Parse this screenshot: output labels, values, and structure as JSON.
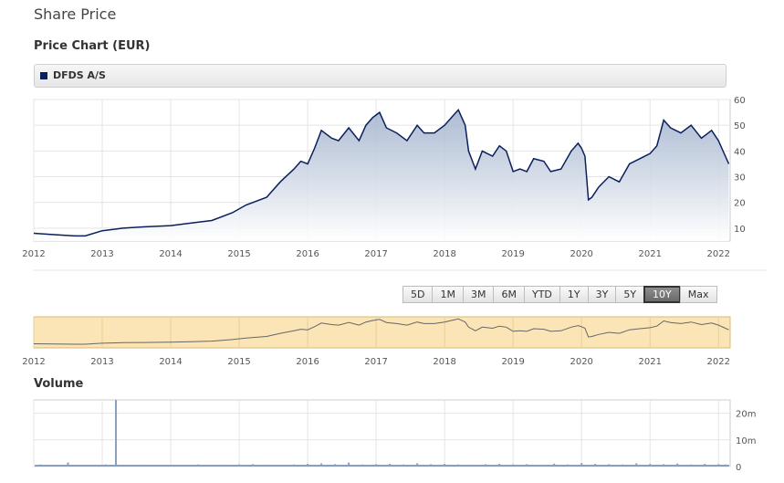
{
  "page": {
    "title": "Share Price"
  },
  "chart": {
    "title": "Price Chart (EUR)"
  },
  "legend": {
    "swatch_color": "#0a1f5c",
    "label": "DFDS A/S"
  },
  "range_buttons": [
    {
      "label": "5D",
      "active": false
    },
    {
      "label": "1M",
      "active": false
    },
    {
      "label": "3M",
      "active": false
    },
    {
      "label": "6M",
      "active": false
    },
    {
      "label": "YTD",
      "active": false
    },
    {
      "label": "1Y",
      "active": false
    },
    {
      "label": "3Y",
      "active": false
    },
    {
      "label": "5Y",
      "active": false
    },
    {
      "label": "10Y",
      "active": true
    },
    {
      "label": "Max",
      "active": false
    }
  ],
  "volume": {
    "title": "Volume"
  },
  "chart_data": [
    {
      "type": "area",
      "series": [
        {
          "name": "DFDS A/S",
          "color": "#0a1f5c",
          "x": [
            2012.0,
            2012.3,
            2012.6,
            2012.75,
            2013.0,
            2013.3,
            2013.6,
            2014.0,
            2014.3,
            2014.6,
            2014.9,
            2015.1,
            2015.4,
            2015.6,
            2015.8,
            2015.9,
            2016.0,
            2016.1,
            2016.2,
            2016.35,
            2016.45,
            2016.6,
            2016.75,
            2016.85,
            2016.95,
            2017.05,
            2017.15,
            2017.3,
            2017.45,
            2017.6,
            2017.7,
            2017.85,
            2018.0,
            2018.1,
            2018.2,
            2018.3,
            2018.35,
            2018.45,
            2018.55,
            2018.7,
            2018.8,
            2018.9,
            2019.0,
            2019.1,
            2019.2,
            2019.3,
            2019.45,
            2019.55,
            2019.7,
            2019.85,
            2019.95,
            2020.0,
            2020.05,
            2020.1,
            2020.15,
            2020.25,
            2020.4,
            2020.55,
            2020.7,
            2020.85,
            2021.0,
            2021.1,
            2021.2,
            2021.3,
            2021.45,
            2021.6,
            2021.75,
            2021.9,
            2022.0,
            2022.1,
            2022.15
          ],
          "values": [
            8,
            7.5,
            7,
            7,
            9,
            10,
            10.5,
            11,
            12,
            13,
            16,
            19,
            22,
            28,
            33,
            36,
            35,
            41,
            48,
            45,
            44,
            49,
            44,
            50,
            53,
            55,
            49,
            47,
            44,
            50,
            47,
            47,
            50,
            53,
            56,
            50,
            40,
            33,
            40,
            38,
            42,
            40,
            32,
            33,
            32,
            37,
            36,
            32,
            33,
            40,
            43,
            41,
            38,
            21,
            22,
            26,
            30,
            28,
            35,
            37,
            39,
            42,
            52,
            49,
            47,
            50,
            45,
            48,
            44,
            38,
            35
          ],
          "xlim": [
            2012.0,
            2022.17
          ],
          "ylim": [
            5,
            60
          ],
          "yticks": [
            10,
            20,
            30,
            40,
            50,
            60
          ],
          "xticks": [
            "2012",
            "2013",
            "2014",
            "2015",
            "2016",
            "2017",
            "2018",
            "2019",
            "2020",
            "2021",
            "2022"
          ],
          "grid": true
        }
      ]
    },
    {
      "type": "line",
      "series": [
        {
          "color": "#666666",
          "x": [
            2012.0,
            2012.3,
            2012.6,
            2012.75,
            2013.0,
            2013.3,
            2013.6,
            2014.0,
            2014.3,
            2014.6,
            2014.9,
            2015.1,
            2015.4,
            2015.6,
            2015.8,
            2015.9,
            2016.0,
            2016.1,
            2016.2,
            2016.35,
            2016.45,
            2016.6,
            2016.75,
            2016.85,
            2016.95,
            2017.05,
            2017.15,
            2017.3,
            2017.45,
            2017.6,
            2017.7,
            2017.85,
            2018.0,
            2018.1,
            2018.2,
            2018.3,
            2018.35,
            2018.45,
            2018.55,
            2018.7,
            2018.8,
            2018.9,
            2019.0,
            2019.1,
            2019.2,
            2019.3,
            2019.45,
            2019.55,
            2019.7,
            2019.85,
            2019.95,
            2020.0,
            2020.05,
            2020.1,
            2020.15,
            2020.25,
            2020.4,
            2020.55,
            2020.7,
            2020.85,
            2021.0,
            2021.1,
            2021.2,
            2021.3,
            2021.45,
            2021.6,
            2021.75,
            2021.9,
            2022.0,
            2022.1,
            2022.15
          ],
          "values": [
            8,
            7.5,
            7,
            7,
            9,
            10,
            10.5,
            11,
            12,
            13,
            16,
            19,
            22,
            28,
            33,
            36,
            35,
            41,
            48,
            45,
            44,
            49,
            44,
            50,
            53,
            55,
            49,
            47,
            44,
            50,
            47,
            47,
            50,
            53,
            56,
            50,
            40,
            33,
            40,
            38,
            42,
            40,
            32,
            33,
            32,
            37,
            36,
            32,
            33,
            40,
            43,
            41,
            38,
            21,
            22,
            26,
            30,
            28,
            35,
            37,
            39,
            42,
            52,
            49,
            47,
            50,
            45,
            48,
            44,
            38,
            35
          ],
          "xlim": [
            2012.0,
            2022.17
          ],
          "ylim": [
            0,
            60
          ],
          "xticks": [
            "2012",
            "2013",
            "2014",
            "2015",
            "2016",
            "2017",
            "2018",
            "2019",
            "2020",
            "2021",
            "2022"
          ]
        }
      ]
    },
    {
      "type": "bar",
      "series": [
        {
          "color": "#8a9fbf",
          "x": [
            2012.1,
            2012.3,
            2012.5,
            2012.7,
            2012.9,
            2013.05,
            2013.2,
            2013.4,
            2013.6,
            2013.8,
            2014.0,
            2014.2,
            2014.4,
            2014.6,
            2014.8,
            2015.0,
            2015.2,
            2015.4,
            2015.6,
            2015.8,
            2016.0,
            2016.2,
            2016.4,
            2016.6,
            2016.8,
            2017.0,
            2017.2,
            2017.4,
            2017.6,
            2017.8,
            2018.0,
            2018.2,
            2018.4,
            2018.6,
            2018.8,
            2019.0,
            2019.2,
            2019.4,
            2019.6,
            2019.8,
            2020.0,
            2020.2,
            2020.4,
            2020.6,
            2020.8,
            2021.0,
            2021.2,
            2021.4,
            2021.6,
            2021.8,
            2022.0,
            2022.1
          ],
          "values": [
            0.8,
            0.5,
            1.5,
            0.6,
            0.7,
            0.8,
            30,
            0.6,
            0.7,
            0.5,
            0.6,
            0.5,
            0.8,
            0.6,
            0.7,
            0.8,
            0.9,
            0.7,
            0.6,
            0.8,
            1.0,
            1.2,
            0.9,
            1.5,
            0.8,
            0.9,
            1.0,
            0.8,
            1.2,
            0.9,
            1.0,
            0.8,
            0.7,
            0.9,
            1.0,
            0.8,
            0.9,
            0.7,
            1.1,
            0.8,
            1.3,
            1.0,
            0.9,
            0.8,
            1.2,
            1.0,
            0.9,
            1.1,
            0.8,
            1.0,
            0.9,
            0.8
          ],
          "xlim": [
            2012.0,
            2022.17
          ],
          "ylim": [
            0,
            25
          ],
          "yticks": [
            0,
            10,
            20
          ],
          "ytick_labels": [
            "0",
            "10m",
            "20m"
          ]
        }
      ]
    }
  ]
}
